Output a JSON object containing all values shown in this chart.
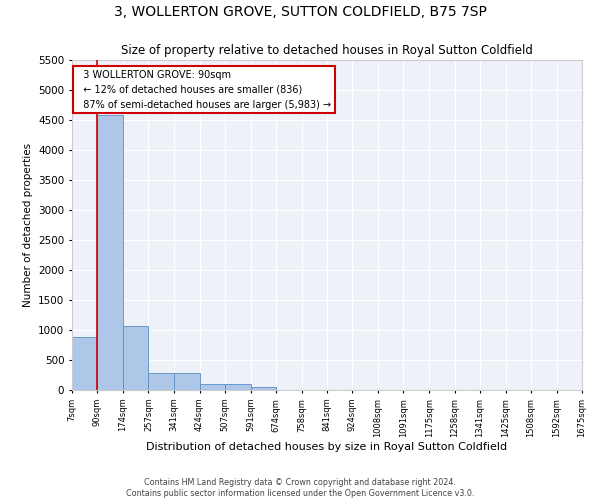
{
  "title": "3, WOLLERTON GROVE, SUTTON COLDFIELD, B75 7SP",
  "subtitle": "Size of property relative to detached houses in Royal Sutton Coldfield",
  "xlabel": "Distribution of detached houses by size in Royal Sutton Coldfield",
  "ylabel": "Number of detached properties",
  "footer_line1": "Contains HM Land Registry data © Crown copyright and database right 2024.",
  "footer_line2": "Contains public sector information licensed under the Open Government Licence v3.0.",
  "annotation_title": "3 WOLLERTON GROVE: 90sqm",
  "annotation_line1": "← 12% of detached houses are smaller (836)",
  "annotation_line2": "87% of semi-detached houses are larger (5,983) →",
  "property_size_sqm": 90,
  "bar_edges": [
    7,
    90,
    174,
    257,
    341,
    424,
    507,
    591,
    674,
    758,
    841,
    924,
    1008,
    1091,
    1175,
    1258,
    1341,
    1425,
    1508,
    1592,
    1675
  ],
  "bar_heights": [
    880,
    4580,
    1060,
    290,
    285,
    100,
    95,
    55,
    0,
    0,
    0,
    0,
    0,
    0,
    0,
    0,
    0,
    0,
    0,
    0
  ],
  "bar_color": "#aec6e8",
  "bar_edge_color": "#5a8fc4",
  "reference_line_color": "#cc0000",
  "annotation_box_color": "#cc0000",
  "background_color": "#eef2f8",
  "grid_color": "#ffffff",
  "ylim": [
    0,
    5500
  ],
  "tick_labels": [
    "7sqm",
    "90sqm",
    "174sqm",
    "257sqm",
    "341sqm",
    "424sqm",
    "507sqm",
    "591sqm",
    "674sqm",
    "758sqm",
    "841sqm",
    "924sqm",
    "1008sqm",
    "1091sqm",
    "1175sqm",
    "1258sqm",
    "1341sqm",
    "1425sqm",
    "1508sqm",
    "1592sqm",
    "1675sqm"
  ]
}
